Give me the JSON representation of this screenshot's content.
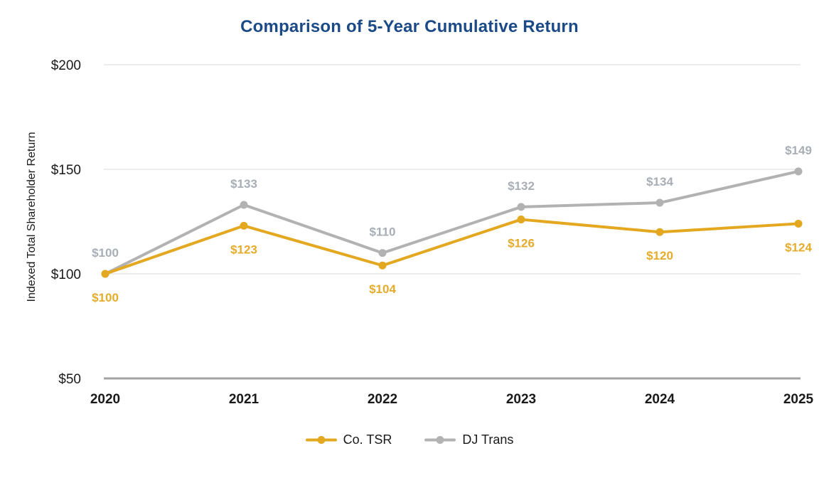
{
  "chart_data": {
    "type": "line",
    "title": "Comparison of 5-Year Cumulative Return",
    "ylabel": "Indexed Total Shareholder Return",
    "xlabel": "",
    "categories": [
      "2020",
      "2021",
      "2022",
      "2023",
      "2024",
      "2025"
    ],
    "series": [
      {
        "name": "Co. TSR",
        "values": [
          100,
          123,
          104,
          126,
          120,
          124
        ],
        "color": "#E3A820",
        "label_color": "#E5AC2B",
        "label_position": "below"
      },
      {
        "name": "DJ Trans",
        "values": [
          100,
          133,
          110,
          132,
          134,
          149
        ],
        "color": "#B2B2B2",
        "label_color": "#A8AEB6",
        "label_position": "above"
      }
    ],
    "ylim": [
      50,
      200
    ],
    "y_ticks": [
      50,
      100,
      150,
      200
    ],
    "value_prefix": "$",
    "grid": true,
    "legend_position": "bottom"
  },
  "colors": {
    "title": "#1B4A87",
    "axis_text": "#1A1A1A",
    "legend_text": "#1A1A1A",
    "gridline": "#ECECEC",
    "axis_line": "#A3A3A3",
    "background": "#FFFFFF"
  }
}
